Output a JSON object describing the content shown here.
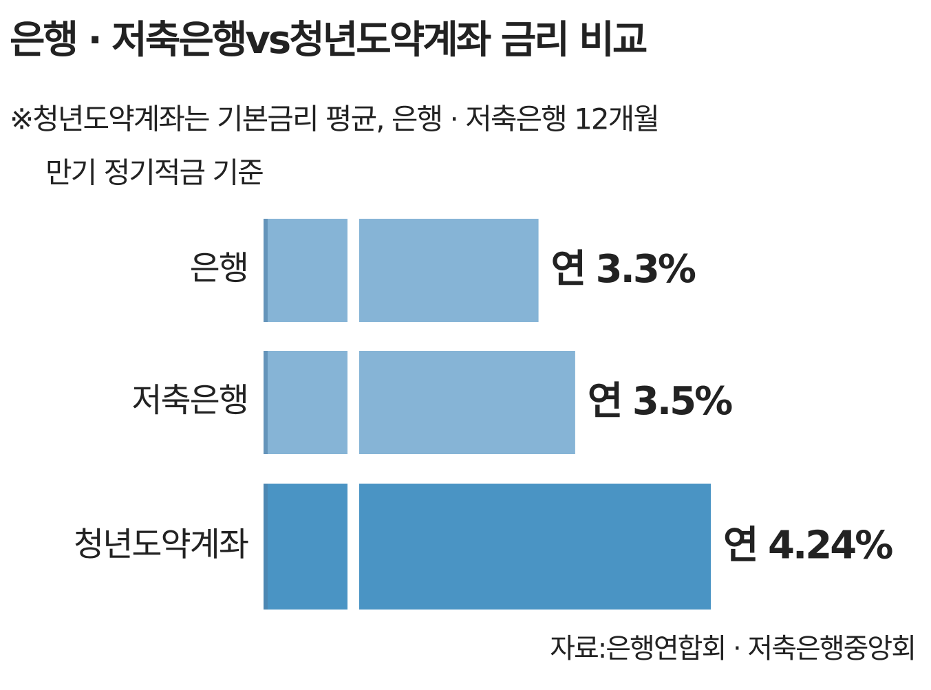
{
  "chart_data": {
    "type": "hbar",
    "title": "은행 · 저축은행vs청년도약계좌 금리 비교",
    "subtitle": [
      "※청년도약계좌는 기본금리 평균, 은행 · 저축은행 12개월",
      "만기 정기적금 기준"
    ],
    "categories": [
      "은행",
      "저축은행",
      "청년도약계좌"
    ],
    "values": [
      3.3,
      3.5,
      4.24
    ],
    "value_labels": [
      "연 3.3%",
      "연 3.5%",
      "연 4.24%"
    ],
    "colors": [
      "#86b4d6",
      "#86b4d6",
      "#4a94c4"
    ],
    "xlim": [
      1.8,
      4.3
    ],
    "source": "자료:은행연합회 · 저축은행중앙회"
  }
}
